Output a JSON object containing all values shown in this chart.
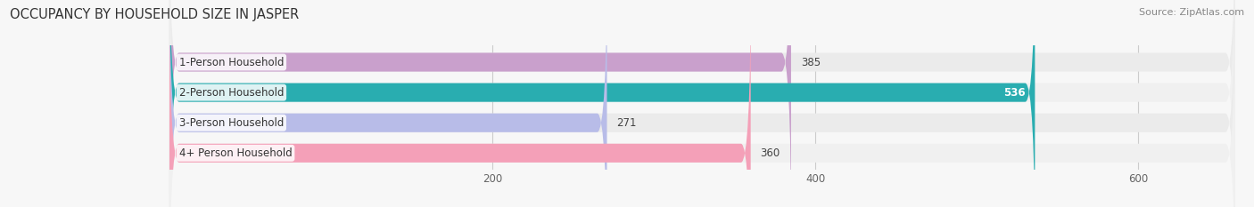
{
  "title": "OCCUPANCY BY HOUSEHOLD SIZE IN JASPER",
  "source": "Source: ZipAtlas.com",
  "categories": [
    "1-Person Household",
    "2-Person Household",
    "3-Person Household",
    "4+ Person Household"
  ],
  "values": [
    385,
    536,
    271,
    360
  ],
  "bar_colors": [
    "#c9a0cc",
    "#29adb0",
    "#b8bce8",
    "#f4a0b8"
  ],
  "label_colors": [
    "#444444",
    "#ffffff",
    "#444444",
    "#444444"
  ],
  "xlim": [
    0,
    660
  ],
  "xticks": [
    200,
    400,
    600
  ],
  "title_fontsize": 10.5,
  "source_fontsize": 8,
  "label_fontsize": 8.5,
  "value_fontsize": 8.5,
  "bar_height": 0.62,
  "background_color": "#f7f7f7",
  "row_bg_color": "#ebebeb",
  "row_alt_bg_color": "#f2f2f2"
}
